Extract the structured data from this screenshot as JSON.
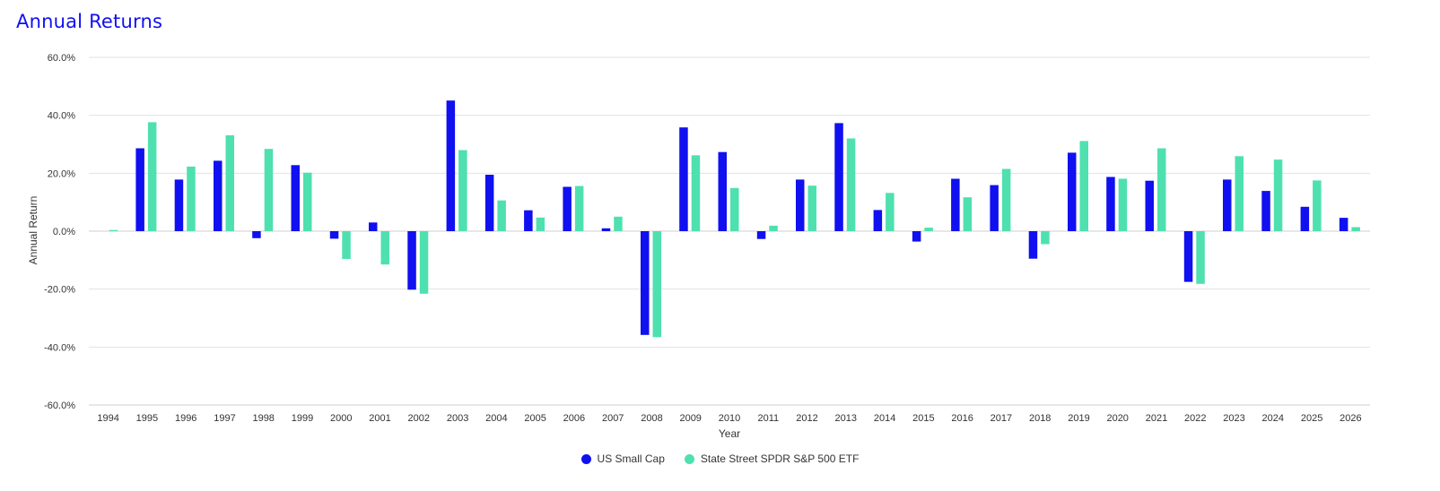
{
  "title": "Annual Returns",
  "colors": {
    "title": "#1010f0",
    "grid": "#e3e3e3",
    "text": "#333333"
  },
  "chart_data": {
    "type": "bar",
    "title": "Annual Returns",
    "xlabel": "Year",
    "ylabel": "Annual Return",
    "ylim": [
      -60,
      60
    ],
    "yticks": [
      "60.0%",
      "40.0%",
      "20.0%",
      "0.0%",
      "-20.0%",
      "-40.0%",
      "-60.0%"
    ],
    "ytick_values": [
      60,
      40,
      20,
      0,
      -20,
      -40,
      -60
    ],
    "grid": true,
    "legend_position": "bottom-center",
    "categories": [
      "1994",
      "1995",
      "1996",
      "1997",
      "1998",
      "1999",
      "2000",
      "2001",
      "2002",
      "2003",
      "2004",
      "2005",
      "2006",
      "2007",
      "2008",
      "2009",
      "2010",
      "2011",
      "2012",
      "2013",
      "2014",
      "2015",
      "2016",
      "2017",
      "2018",
      "2019",
      "2020",
      "2021",
      "2022",
      "2023",
      "2024",
      "2025",
      "2026"
    ],
    "series": [
      {
        "name": "US Small Cap",
        "color": "#1010f0",
        "values": [
          null,
          28.6,
          17.8,
          24.3,
          -2.4,
          22.8,
          -2.6,
          3.0,
          -20.2,
          45.1,
          19.5,
          7.2,
          15.3,
          1.0,
          -35.8,
          35.8,
          27.3,
          -2.7,
          17.8,
          37.3,
          7.3,
          -3.6,
          18.1,
          15.9,
          -9.5,
          27.1,
          18.7,
          17.4,
          -17.5,
          17.8,
          13.9,
          8.4,
          4.6
        ]
      },
      {
        "name": "State Street SPDR S&P 500 ETF",
        "color": "#4fe0b0",
        "values": [
          0.4,
          37.6,
          22.3,
          33.1,
          28.4,
          20.2,
          -9.6,
          -11.5,
          -21.6,
          28.0,
          10.6,
          4.7,
          15.6,
          5.0,
          -36.6,
          26.2,
          14.9,
          1.9,
          15.7,
          32.0,
          13.2,
          1.2,
          11.7,
          21.5,
          -4.5,
          31.1,
          18.1,
          28.6,
          -18.2,
          25.9,
          24.7,
          17.5,
          1.4
        ]
      }
    ]
  }
}
